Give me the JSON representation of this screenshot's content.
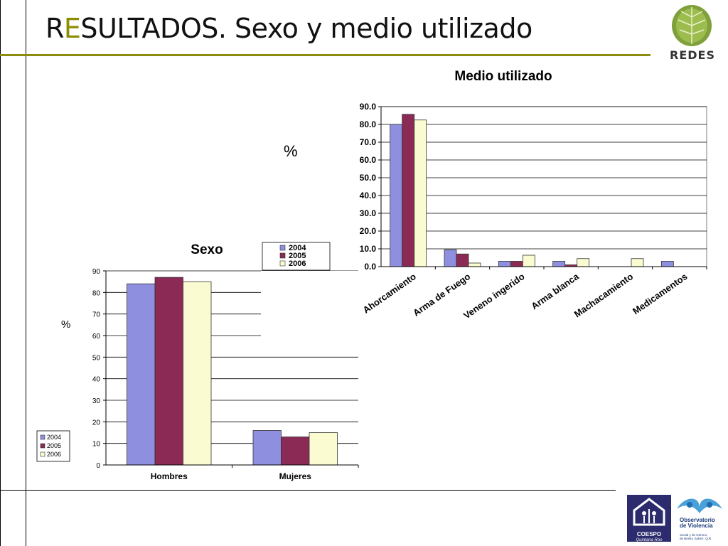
{
  "slide": {
    "title_first": "R",
    "title_accent": "E",
    "title_rest": "SULTADOS. Sexo y medio utilizado",
    "pct_label_1": "%",
    "pct_label_2": "%"
  },
  "logos": {
    "redes": "REDES",
    "coespo": "COESPO",
    "coespo_sub": "Quintana Roo",
    "observatorio_line1": "Observatorio",
    "observatorio_line2": "de Violencia",
    "observatorio_sub1": "Social y de Género",
    "observatorio_sub2": "de Benito Juárez, Q.R."
  },
  "colors": {
    "s2004": "#8f8fe0",
    "s2005": "#8a2a55",
    "s2006": "#fbfbd2",
    "rule": "#8c8c10"
  },
  "chart_data": [
    {
      "type": "bar",
      "title": "Medio utilizado",
      "categories": [
        "Ahorcamiento",
        "Arma de Fuego",
        "Veneno ingerido",
        "Arma blanca",
        "Machacamiento",
        "Medicamentos"
      ],
      "series": [
        {
          "name": "2004",
          "values": [
            80.0,
            9.5,
            3.0,
            3.0,
            0.0,
            3.0
          ]
        },
        {
          "name": "2005",
          "values": [
            85.7,
            7.1,
            3.0,
            1.0,
            0.0,
            0.0
          ]
        },
        {
          "name": "2006",
          "values": [
            82.5,
            2.0,
            6.4,
            4.5,
            4.5,
            0.0
          ]
        }
      ],
      "yticks": [
        "0.0",
        "10.0",
        "20.0",
        "30.0",
        "40.0",
        "50.0",
        "60.0",
        "70.0",
        "80.0",
        "90.0"
      ],
      "ylim": [
        0,
        90
      ],
      "ylabel": "%",
      "grid": true
    },
    {
      "type": "bar",
      "title": "Sexo",
      "categories": [
        "Hombres",
        "Mujeres"
      ],
      "series": [
        {
          "name": "2004",
          "values": [
            84,
            16
          ]
        },
        {
          "name": "2005",
          "values": [
            87,
            13
          ]
        },
        {
          "name": "2006",
          "values": [
            85,
            15
          ]
        }
      ],
      "yticks": [
        "0",
        "10",
        "20",
        "30",
        "40",
        "50",
        "60",
        "70",
        "80",
        "90"
      ],
      "ylim": [
        0,
        90
      ],
      "ylabel": "%",
      "grid": true,
      "legend": {
        "placement": "left",
        "entries": [
          "2004",
          "2005",
          "2006"
        ]
      }
    }
  ],
  "floating_legend": [
    "2004",
    "2005",
    "2006"
  ]
}
